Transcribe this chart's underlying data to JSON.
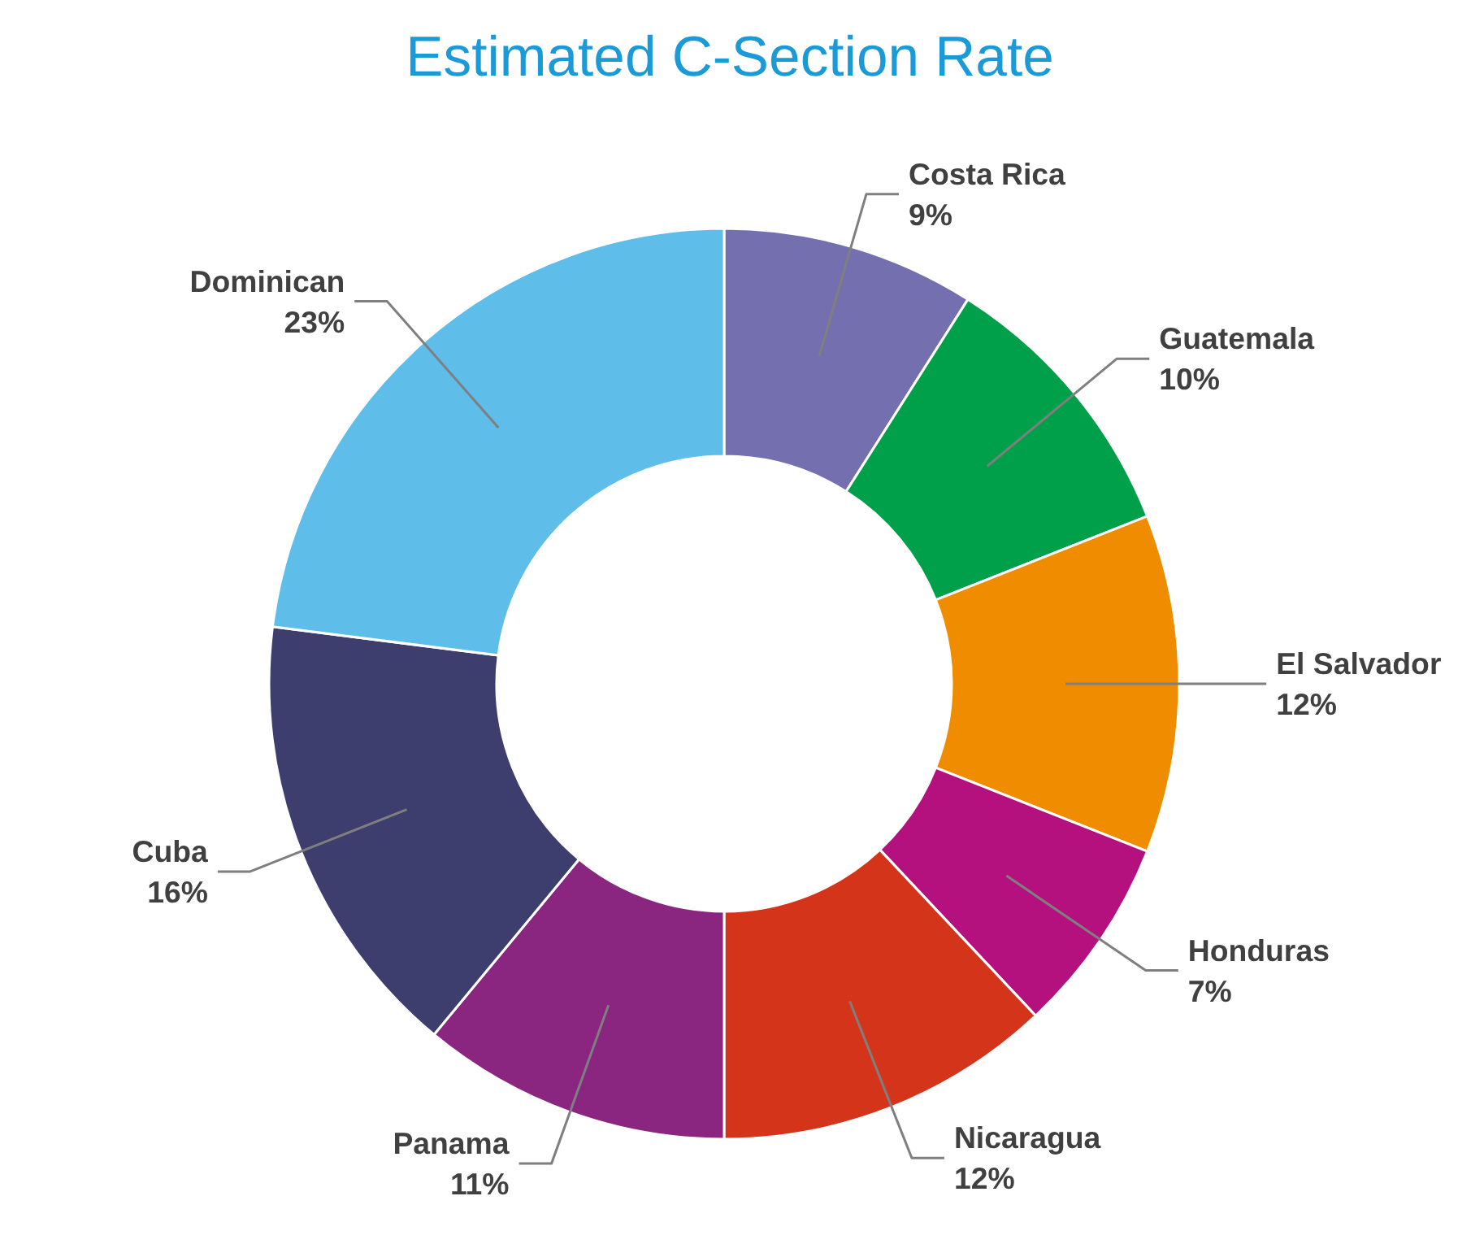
{
  "chart_data": {
    "type": "donut",
    "title": "Estimated C-Section Rate",
    "categories": [
      "Costa Rica",
      "Guatemala",
      "El Salvador",
      "Honduras",
      "Nicaragua",
      "Panama",
      "Cuba",
      "Dominican"
    ],
    "values": [
      9,
      10,
      12,
      7,
      12,
      11,
      16,
      23
    ],
    "value_labels": [
      "9%",
      "10%",
      "12%",
      "7%",
      "12%",
      "11%",
      "16%",
      "23%"
    ],
    "colors": [
      "#7470b0",
      "#00a04a",
      "#f08c00",
      "#b5117e",
      "#d4351a",
      "#8a2580",
      "#3d3d6e",
      "#5fbdea"
    ]
  }
}
